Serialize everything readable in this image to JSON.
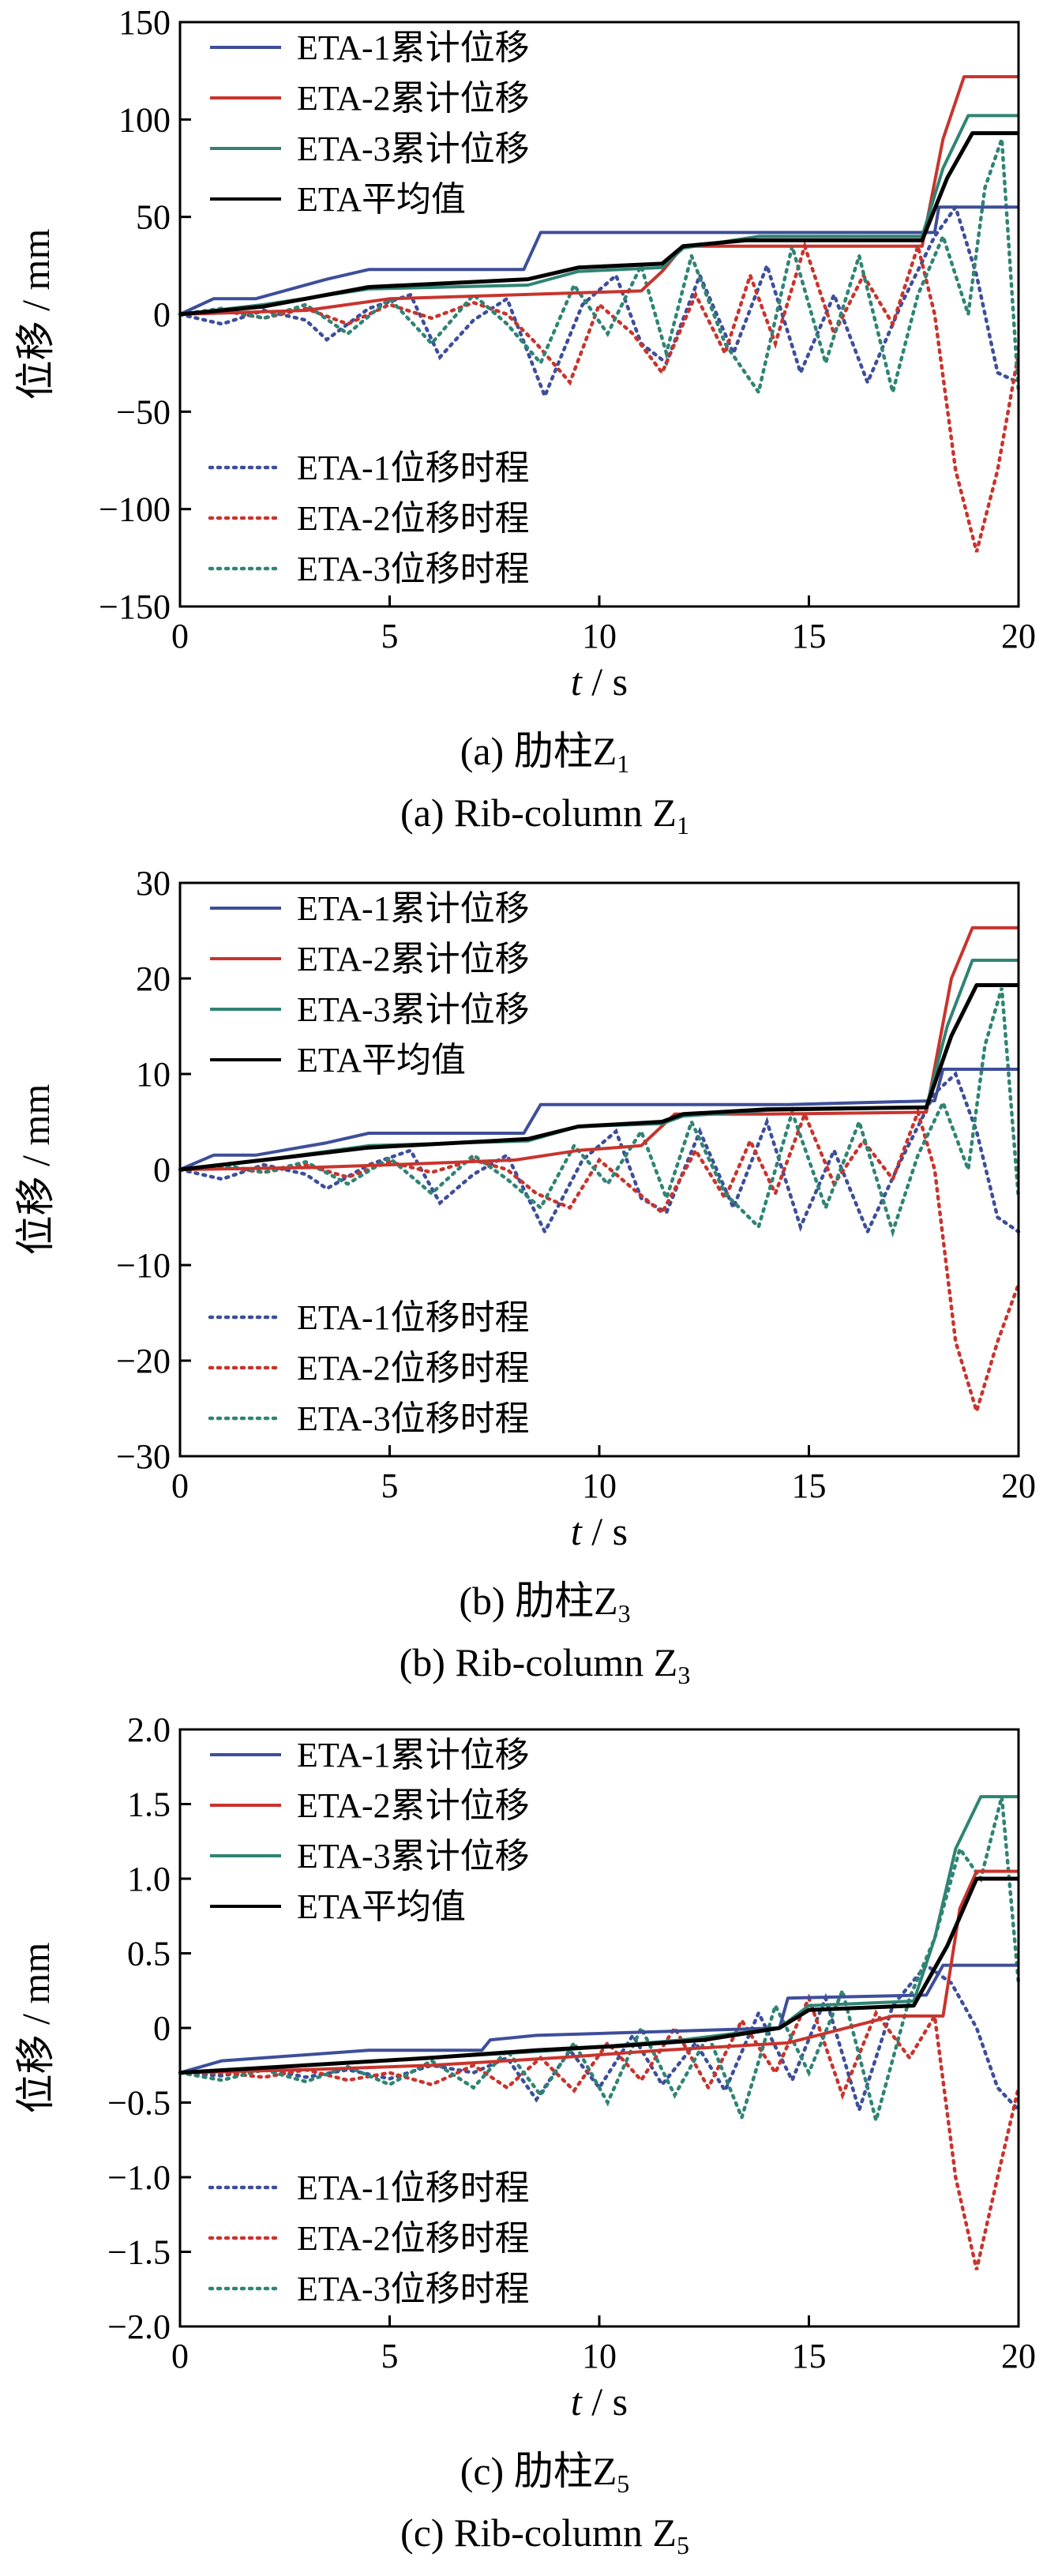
{
  "chart_data": [
    {
      "type": "line",
      "caption_cn": "(a) 肋柱Z",
      "caption_cn_sub": "1",
      "caption_en": "(a) Rib-column Z",
      "caption_en_sub": "1",
      "xlabel": "t / s",
      "ylabel": "位移 / mm",
      "xlim": [
        0,
        20
      ],
      "ylim": [
        -150,
        150
      ],
      "xticks": [
        "0",
        "5",
        "10",
        "15",
        "20"
      ],
      "yticks": [
        "-150",
        "-100",
        "-50",
        "0",
        "50",
        "100",
        "150"
      ],
      "legend_top": [
        "ETA-1累计位移",
        "ETA-2累计位移",
        "ETA-3累计位移",
        "ETA平均值"
      ],
      "legend_bottom": [
        "ETA-1位移时程",
        "ETA-2位移时程",
        "ETA-3位移时程"
      ],
      "cumulative": [
        {
          "name": "ETA-1累计位移",
          "color": "#3d4e9a",
          "x": [
            0,
            0.8,
            1.8,
            3.5,
            4.5,
            8.2,
            8.6,
            18.0,
            18.1,
            20
          ],
          "y": [
            0,
            8,
            8,
            18,
            23,
            23,
            42,
            42,
            55,
            55
          ]
        },
        {
          "name": "ETA-2累计位移",
          "color": "#c8342d",
          "x": [
            0,
            3,
            5,
            11,
            11.5,
            12,
            12.5,
            17.7,
            18.2,
            18.7,
            20
          ],
          "y": [
            0,
            2,
            8,
            12,
            22,
            35,
            35,
            35,
            90,
            122,
            122
          ]
        },
        {
          "name": "ETA-3累计位移",
          "color": "#2f8474",
          "x": [
            0,
            2,
            4.5,
            8.3,
            9.5,
            11.5,
            12.0,
            13.8,
            17.7,
            18.2,
            18.8,
            20
          ],
          "y": [
            0,
            5,
            13,
            15,
            22,
            24,
            34,
            40,
            40,
            75,
            102,
            102
          ]
        },
        {
          "name": "ETA平均值",
          "color": "#000000",
          "x": [
            0,
            2,
            4.5,
            8.3,
            9.5,
            11.5,
            12.0,
            13.5,
            17.7,
            18.3,
            18.9,
            20
          ],
          "y": [
            0,
            4,
            14,
            18,
            24,
            26,
            35,
            38,
            38,
            70,
            93,
            93
          ]
        }
      ],
      "histories": [
        {
          "name": "ETA-1位移时程",
          "color": "#3d4e9a",
          "x": [
            0,
            1,
            2,
            3,
            3.5,
            4.5,
            5.5,
            6.2,
            7.0,
            7.8,
            8.7,
            9.6,
            10.4,
            11.0,
            11.6,
            12.4,
            13.2,
            14.0,
            14.8,
            15.6,
            16.4,
            17.2,
            18.0,
            18.5,
            19.0,
            19.5,
            20
          ],
          "y": [
            0,
            -5,
            2,
            -3,
            -13,
            3,
            10,
            -22,
            -3,
            8,
            -42,
            5,
            20,
            -15,
            -25,
            20,
            -20,
            25,
            -30,
            10,
            -35,
            5,
            40,
            55,
            20,
            -30,
            -35
          ]
        },
        {
          "name": "ETA-2位移时程",
          "color": "#c8342d",
          "x": [
            0,
            1,
            2,
            3,
            4,
            5,
            6,
            7,
            7.8,
            8.5,
            9.3,
            10.0,
            10.8,
            11.5,
            12.3,
            13.0,
            13.6,
            14.2,
            14.9,
            15.6,
            16.3,
            17.0,
            17.6,
            18.0,
            18.5,
            19.0,
            19.5,
            20
          ],
          "y": [
            0,
            2,
            -2,
            3,
            -5,
            5,
            -2,
            6,
            0,
            -15,
            -35,
            5,
            -10,
            -30,
            10,
            -20,
            20,
            -15,
            35,
            -10,
            20,
            -5,
            35,
            0,
            -80,
            -122,
            -80,
            -20
          ]
        },
        {
          "name": "ETA-3位移时程",
          "color": "#2f8474",
          "x": [
            0,
            1,
            2,
            3,
            4,
            5,
            6,
            7,
            7.8,
            8.6,
            9.4,
            10.2,
            11.0,
            11.6,
            12.2,
            13.0,
            13.8,
            14.6,
            15.4,
            16.2,
            17.0,
            17.6,
            18.2,
            18.8,
            19.2,
            19.6,
            20
          ],
          "y": [
            0,
            3,
            -2,
            5,
            -10,
            8,
            -15,
            10,
            -5,
            -25,
            15,
            -10,
            25,
            -20,
            30,
            -15,
            -40,
            35,
            -25,
            30,
            -40,
            10,
            40,
            0,
            65,
            90,
            -40
          ]
        }
      ]
    },
    {
      "type": "line",
      "caption_cn": "(b) 肋柱Z",
      "caption_cn_sub": "3",
      "caption_en": "(b) Rib-column Z",
      "caption_en_sub": "3",
      "xlabel": "t / s",
      "ylabel": "位移 / mm",
      "xlim": [
        0,
        20
      ],
      "ylim": [
        -30,
        30
      ],
      "xticks": [
        "0",
        "5",
        "10",
        "15",
        "20"
      ],
      "yticks": [
        "-30",
        "-20",
        "-10",
        "0",
        "10",
        "20",
        "30"
      ],
      "legend_top": [
        "ETA-1累计位移",
        "ETA-2累计位移",
        "ETA-3累计位移",
        "ETA平均值"
      ],
      "legend_bottom": [
        "ETA-1位移时程",
        "ETA-2位移时程",
        "ETA-3位移时程"
      ],
      "cumulative": [
        {
          "name": "ETA-1累计位移",
          "color": "#3d4e9a",
          "x": [
            0,
            0.8,
            1.8,
            3.5,
            4.5,
            8.2,
            8.6,
            14.5,
            18.0,
            18.2,
            20
          ],
          "y": [
            0,
            1.5,
            1.5,
            2.8,
            3.8,
            3.8,
            6.8,
            6.8,
            7.2,
            10.5,
            10.5
          ]
        },
        {
          "name": "ETA-2累计位移",
          "color": "#c8342d",
          "x": [
            0,
            3,
            5,
            8,
            9.5,
            11,
            11.8,
            14.0,
            17.8,
            18.4,
            18.9,
            20
          ],
          "y": [
            0,
            0.2,
            0.5,
            1.0,
            2.0,
            2.5,
            5.8,
            5.8,
            6.0,
            20,
            25.3,
            25.3
          ]
        },
        {
          "name": "ETA-3累计位移",
          "color": "#2f8474",
          "x": [
            0,
            2,
            4.5,
            8.3,
            9.5,
            11.5,
            12.0,
            14.0,
            17.8,
            18.3,
            18.9,
            20
          ],
          "y": [
            0,
            1,
            2.5,
            3.0,
            4.5,
            4.8,
            5.6,
            6.2,
            6.5,
            15,
            21.9,
            21.9
          ]
        },
        {
          "name": "ETA平均值",
          "color": "#000000",
          "x": [
            0,
            2,
            4.5,
            8.3,
            9.5,
            11.5,
            12.0,
            14.0,
            17.8,
            18.4,
            19.0,
            20
          ],
          "y": [
            0,
            1,
            2.3,
            3.2,
            4.5,
            5.0,
            5.8,
            6.3,
            6.5,
            14,
            19.3,
            19.3
          ]
        }
      ],
      "histories": [
        {
          "name": "ETA-1位移时程",
          "color": "#3d4e9a",
          "x": [
            0,
            1,
            2,
            3,
            3.5,
            4.5,
            5.5,
            6.2,
            7.0,
            7.8,
            8.7,
            9.6,
            10.4,
            11.0,
            11.6,
            12.4,
            13.2,
            14.0,
            14.8,
            15.6,
            16.4,
            17.2,
            18.0,
            18.5,
            19.0,
            19.5,
            20
          ],
          "y": [
            0,
            -1,
            0.5,
            -0.5,
            -2,
            0.5,
            2,
            -3.5,
            -0.5,
            1.5,
            -6.5,
            1,
            4,
            -3,
            -4.5,
            4,
            -4,
            5,
            -6,
            2,
            -6.5,
            1,
            8,
            10,
            4,
            -5,
            -6.5
          ]
        },
        {
          "name": "ETA-2位移时程",
          "color": "#c8342d",
          "x": [
            0,
            1,
            2,
            3,
            4,
            5,
            6,
            7,
            7.8,
            8.5,
            9.3,
            10.0,
            10.8,
            11.5,
            12.3,
            13.0,
            13.6,
            14.2,
            14.9,
            15.6,
            16.3,
            17.0,
            17.6,
            18.0,
            18.5,
            19.0,
            19.5,
            20
          ],
          "y": [
            0,
            0.3,
            -0.3,
            0.5,
            -0.8,
            0.8,
            -0.3,
            1,
            0,
            -2.5,
            -4,
            1,
            -2,
            -4.5,
            2,
            -3,
            3,
            -2.5,
            5.8,
            -1.5,
            3,
            -1,
            6,
            0,
            -18,
            -25.3,
            -18,
            -12
          ]
        },
        {
          "name": "ETA-3位移时程",
          "color": "#2f8474",
          "x": [
            0,
            1,
            2,
            3,
            4,
            5,
            6,
            7,
            7.8,
            8.6,
            9.4,
            10.2,
            11.0,
            11.6,
            12.2,
            13.0,
            13.8,
            14.6,
            15.4,
            16.2,
            17.0,
            17.6,
            18.2,
            18.8,
            19.2,
            19.6,
            20
          ],
          "y": [
            0,
            0.5,
            -0.3,
            0.8,
            -1.5,
            1.2,
            -2.5,
            1.5,
            -1,
            -4,
            2.5,
            -1.5,
            4,
            -3,
            5,
            -2.5,
            -6,
            6,
            -4,
            5,
            -6.5,
            1.5,
            7,
            0,
            13,
            19,
            -3
          ]
        }
      ]
    },
    {
      "type": "line",
      "caption_cn": "(c) 肋柱Z",
      "caption_cn_sub": "5",
      "caption_en": "(c) Rib-column Z",
      "caption_en_sub": "5",
      "xlabel": "t / s",
      "ylabel": "位移 / mm",
      "xlim": [
        0,
        20
      ],
      "ylim": [
        -2.0,
        2.0
      ],
      "xticks": [
        "0",
        "5",
        "10",
        "15",
        "20"
      ],
      "yticks": [
        "-2.0",
        "-1.5",
        "-1.0",
        "-0.5",
        "0",
        "0.5",
        "1.0",
        "1.5",
        "2.0"
      ],
      "legend_top": [
        "ETA-1累计位移",
        "ETA-2累计位移",
        "ETA-3累计位移",
        "ETA平均值"
      ],
      "legend_bottom": [
        "ETA-1位移时程",
        "ETA-2位移时程",
        "ETA-3位移时程"
      ],
      "cumulative": [
        {
          "name": "ETA-1累计位移",
          "color": "#3d4e9a",
          "x": [
            0,
            1,
            4.5,
            7.2,
            7.4,
            8.5,
            14.3,
            14.5,
            17.8,
            18.2,
            20
          ],
          "y": [
            -0.3,
            -0.22,
            -0.15,
            -0.15,
            -0.08,
            -0.05,
            0.0,
            0.2,
            0.22,
            0.42,
            0.42
          ]
        },
        {
          "name": "ETA-2累计位移",
          "color": "#c8342d",
          "x": [
            0,
            3,
            6,
            9,
            11.5,
            14.5,
            17.0,
            18.2,
            18.6,
            19.0,
            20
          ],
          "y": [
            -0.3,
            -0.28,
            -0.25,
            -0.2,
            -0.15,
            -0.1,
            0.08,
            0.08,
            0.8,
            1.05,
            1.05
          ]
        },
        {
          "name": "ETA-3累计位移",
          "color": "#2f8474",
          "x": [
            0,
            3,
            6,
            9,
            12,
            14.3,
            15.0,
            17.5,
            18.0,
            18.5,
            19.1,
            20
          ],
          "y": [
            -0.3,
            -0.25,
            -0.2,
            -0.15,
            -0.08,
            0.0,
            0.15,
            0.18,
            0.6,
            1.2,
            1.55,
            1.55
          ]
        },
        {
          "name": "ETA平均值",
          "color": "#000000",
          "x": [
            0,
            3,
            6,
            8.5,
            10.5,
            12.5,
            14.3,
            15.0,
            17.5,
            18.3,
            19.0,
            20
          ],
          "y": [
            -0.3,
            -0.25,
            -0.2,
            -0.15,
            -0.12,
            -0.08,
            0.0,
            0.12,
            0.15,
            0.55,
            1.0,
            1.0
          ]
        }
      ],
      "histories": [
        {
          "name": "ETA-1位移时程",
          "color": "#3d4e9a",
          "x": [
            0,
            1,
            2,
            3,
            4,
            5,
            6,
            7,
            7.8,
            8.5,
            9.3,
            10.0,
            10.8,
            11.5,
            12.3,
            13.0,
            13.8,
            14.6,
            15.4,
            16.2,
            17.0,
            17.8,
            18.4,
            19.0,
            19.5,
            20
          ],
          "y": [
            -0.3,
            -0.32,
            -0.27,
            -0.33,
            -0.28,
            -0.34,
            -0.25,
            -0.3,
            -0.2,
            -0.48,
            -0.15,
            -0.4,
            -0.05,
            -0.38,
            -0.1,
            -0.42,
            0.1,
            -0.35,
            0.2,
            -0.55,
            0.15,
            0.42,
            0.3,
            0.0,
            -0.4,
            -0.55
          ]
        },
        {
          "name": "ETA-2位移时程",
          "color": "#c8342d",
          "x": [
            0,
            1,
            2,
            3,
            4,
            5,
            6,
            7,
            7.8,
            8.6,
            9.4,
            10.2,
            11.0,
            11.8,
            12.6,
            13.4,
            14.2,
            15.0,
            15.8,
            16.6,
            17.4,
            18.0,
            18.5,
            19.0,
            19.5,
            20
          ],
          "y": [
            -0.3,
            -0.3,
            -0.33,
            -0.28,
            -0.35,
            -0.3,
            -0.38,
            -0.25,
            -0.4,
            -0.2,
            -0.42,
            -0.1,
            -0.35,
            0.0,
            -0.4,
            0.05,
            -0.3,
            0.2,
            -0.45,
            0.1,
            -0.2,
            0.08,
            -1.0,
            -1.62,
            -1.0,
            -0.4
          ]
        },
        {
          "name": "ETA-3位移时程",
          "color": "#2f8474",
          "x": [
            0,
            1,
            2,
            3,
            4,
            5,
            6,
            7,
            7.8,
            8.6,
            9.4,
            10.2,
            11.0,
            11.8,
            12.6,
            13.4,
            14.2,
            15.0,
            15.8,
            16.6,
            17.4,
            18.0,
            18.6,
            19.1,
            19.6,
            20
          ],
          "y": [
            -0.3,
            -0.35,
            -0.28,
            -0.36,
            -0.26,
            -0.38,
            -0.22,
            -0.4,
            -0.15,
            -0.45,
            -0.1,
            -0.5,
            0.0,
            -0.45,
            -0.05,
            -0.6,
            0.15,
            -0.3,
            0.25,
            -0.62,
            0.2,
            0.6,
            1.2,
            1.0,
            1.55,
            0.3
          ]
        }
      ]
    }
  ]
}
